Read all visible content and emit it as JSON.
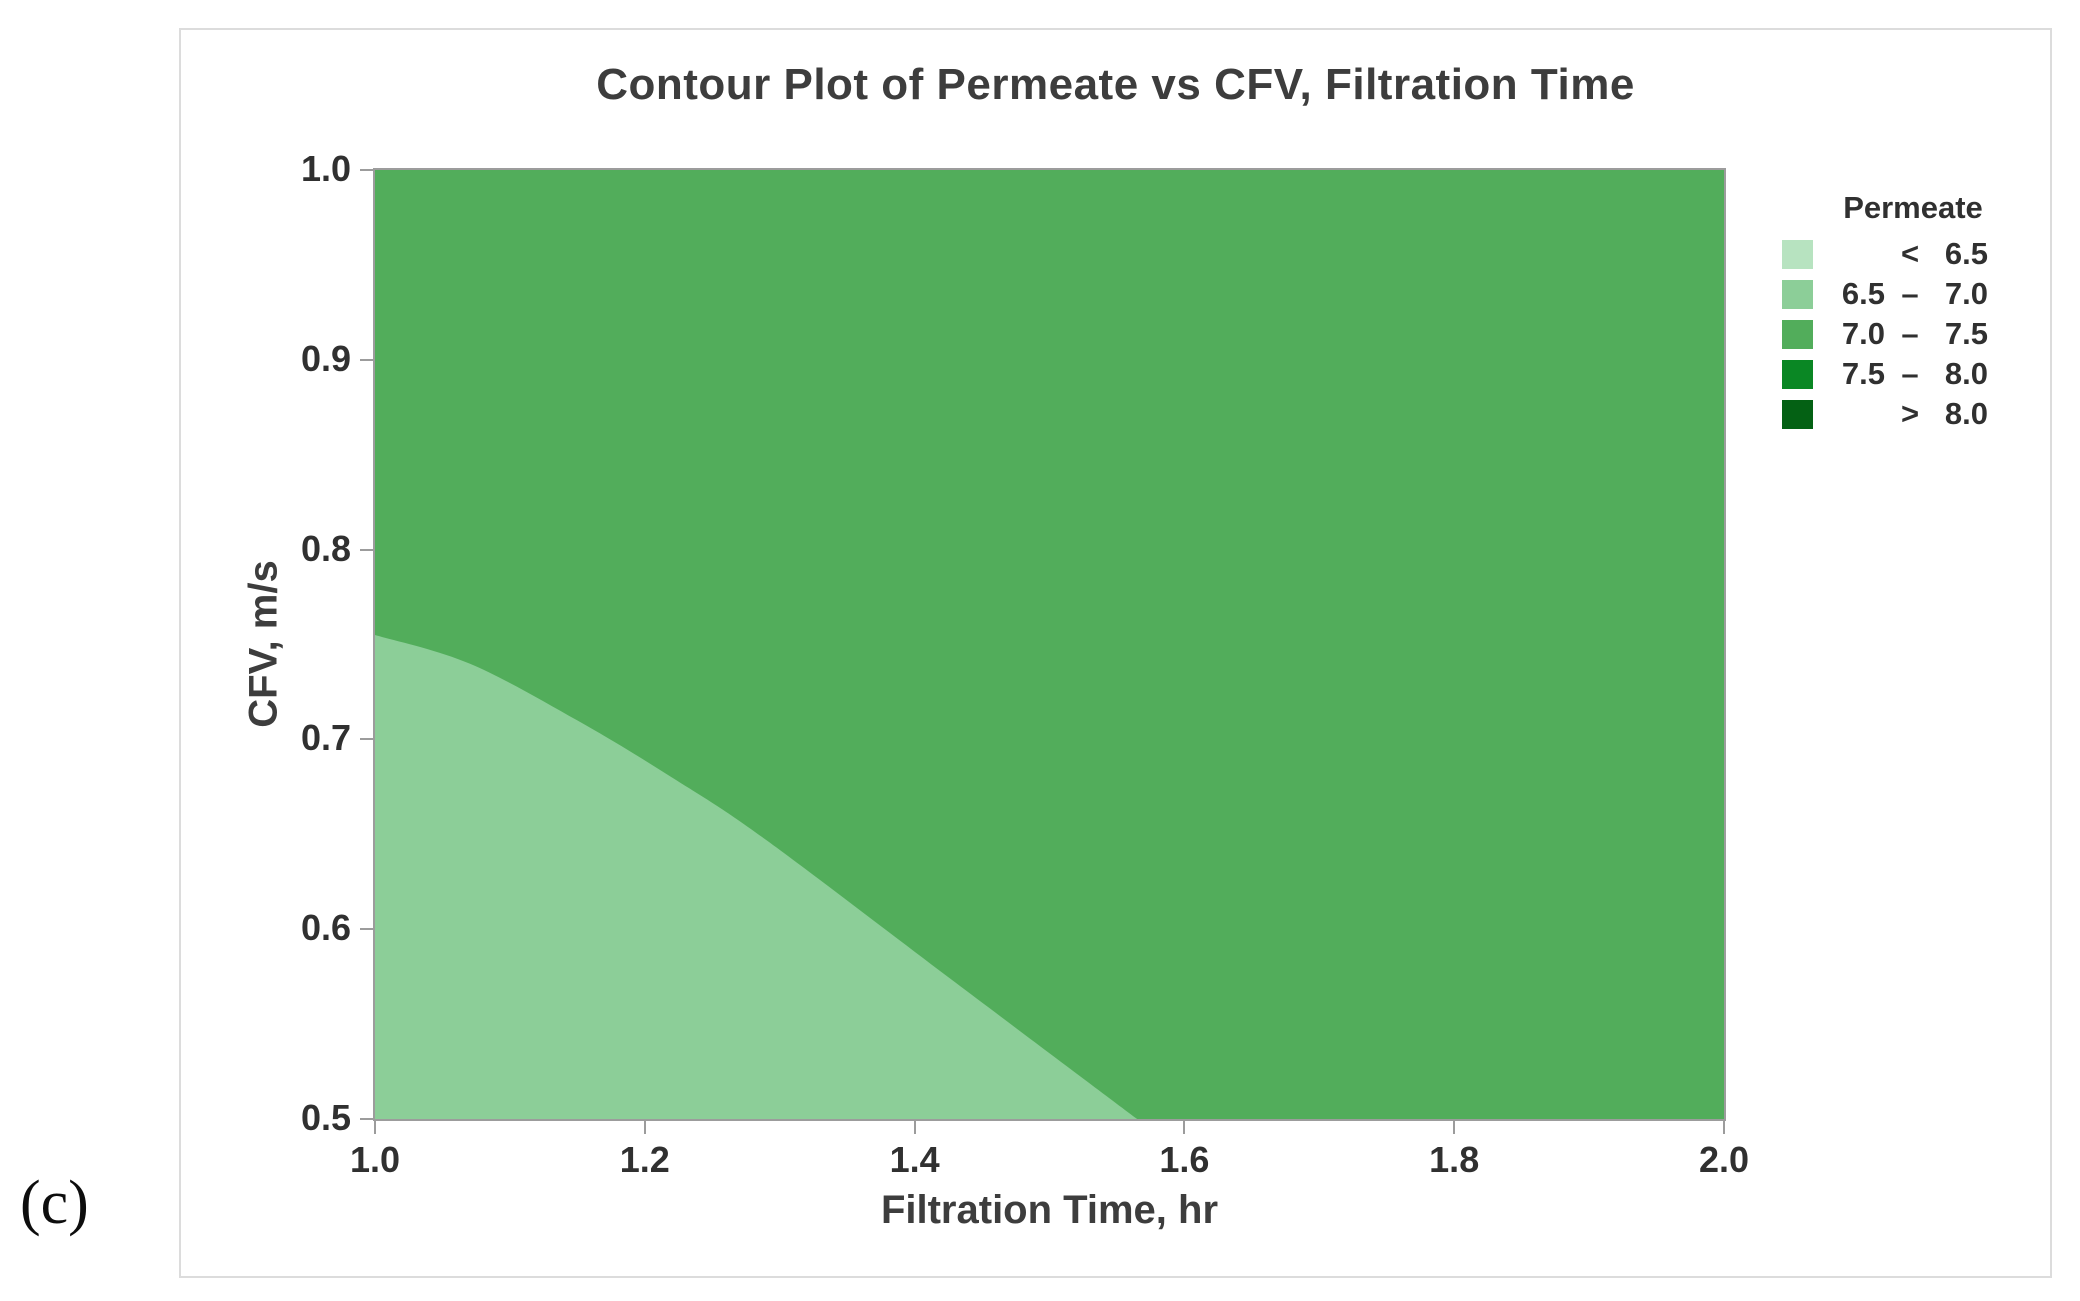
{
  "figure_label": "(c)",
  "chart_data": {
    "type": "contour",
    "title": "Contour Plot of Permeate vs CFV, Filtration Time",
    "xlabel": "Filtration Time, hr",
    "ylabel": "CFV, m/s",
    "xlim": [
      1.0,
      2.0
    ],
    "ylim": [
      0.5,
      1.0
    ],
    "x_ticks": [
      "1.0",
      "1.2",
      "1.4",
      "1.6",
      "1.8",
      "2.0"
    ],
    "y_ticks": [
      "1.0",
      "0.9",
      "0.8",
      "0.7",
      "0.6",
      "0.5"
    ],
    "grid": false,
    "axis_color": "#9c9c9c",
    "text_color": "#3d3d3d",
    "legend": {
      "title": "Permeate",
      "position": "right",
      "entries": [
        {
          "low": "",
          "op": "<",
          "high": "6.5",
          "color": "#b7e3c0"
        },
        {
          "low": "6.5",
          "op": "–",
          "high": "7.0",
          "color": "#8cce98"
        },
        {
          "low": "7.0",
          "op": "–",
          "high": "7.5",
          "color": "#52ad5b"
        },
        {
          "low": "7.5",
          "op": "–",
          "high": "8.0",
          "color": "#0a8724"
        },
        {
          "low": "",
          "op": ">",
          "high": "8.0",
          "color": "#046114"
        }
      ]
    },
    "regions": {
      "base": {
        "level": "7.0 – 7.5",
        "color": "#52ad5b"
      },
      "lower_left": {
        "level": "6.5 – 7.0",
        "color": "#8cce98",
        "boundary_points_t_cfv": [
          [
            1.0,
            0.755
          ],
          [
            1.07,
            0.74
          ],
          [
            1.15,
            0.71
          ],
          [
            1.22,
            0.68
          ],
          [
            1.29,
            0.647
          ],
          [
            1.43,
            0.572
          ],
          [
            1.565,
            0.5
          ]
        ]
      }
    }
  }
}
